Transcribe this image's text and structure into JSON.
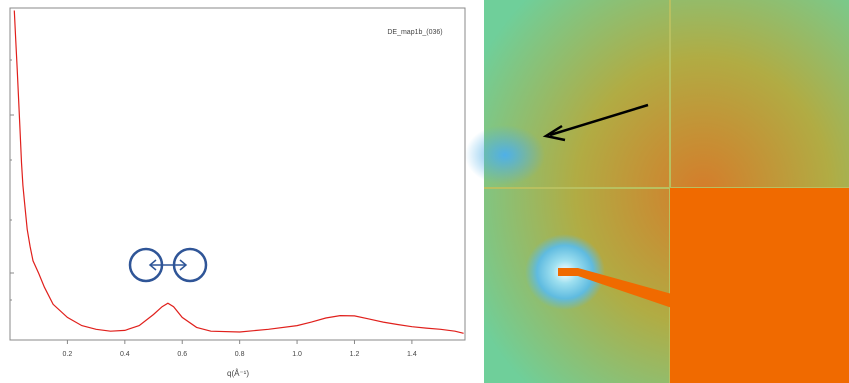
{
  "chart_data": {
    "type": "line",
    "annotation": "DE_map1b_(036)",
    "xlabel": "q(Å⁻¹)",
    "x": [
      0.015,
      0.02,
      0.025,
      0.03,
      0.035,
      0.04,
      0.045,
      0.05,
      0.06,
      0.07,
      0.08,
      0.1,
      0.12,
      0.15,
      0.2,
      0.25,
      0.3,
      0.35,
      0.4,
      0.45,
      0.5,
      0.53,
      0.55,
      0.57,
      0.6,
      0.65,
      0.7,
      0.8,
      0.9,
      1.0,
      1.05,
      1.1,
      1.15,
      1.2,
      1.25,
      1.3,
      1.35,
      1.4,
      1.45,
      1.5,
      1.55,
      1.58
    ],
    "series": [
      {
        "color": "#e0201c",
        "values": [
          950,
          520,
          280,
          150,
          80,
          40,
          25,
          18,
          10,
          7,
          5.2,
          4,
          3,
          2.1,
          1.6,
          1.35,
          1.25,
          1.2,
          1.22,
          1.35,
          1.7,
          2.0,
          2.15,
          2.0,
          1.6,
          1.3,
          1.2,
          1.18,
          1.25,
          1.35,
          1.45,
          1.58,
          1.66,
          1.65,
          1.55,
          1.45,
          1.38,
          1.32,
          1.28,
          1.25,
          1.2,
          1.15
        ]
      }
    ],
    "xlim": [
      0,
      1.585
    ],
    "xticks": [
      0.2,
      0.4,
      0.6,
      0.8,
      {
        "value": 1.0,
        "label": "1.0"
      },
      1.2,
      1.4
    ],
    "ylim": [
      1,
      1000
    ],
    "log_y": true
  }
}
